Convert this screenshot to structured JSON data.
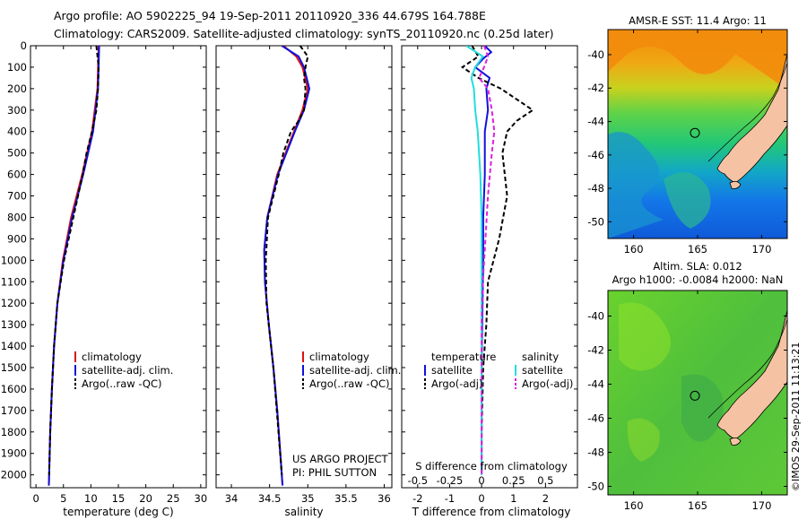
{
  "title_line1": "Argo profile: AO 5902225_94 19-Sep-2011 20110920_336 44.679S 164.788E",
  "title_line2": "Climatology: CARS2009. Satellite-adjusted climatology: synTS_20110920.nc (0.25d later)",
  "credit": "©IMOS 29-Sep-2011 11:13:21",
  "colors": {
    "climatology": "#dd1111",
    "satellite": "#1111dd",
    "argo": "#000000",
    "t_satellite": "#1111dd",
    "s_satellite": "#22dddd",
    "s_argo": "#dd22dd",
    "land": "#f5c3a3"
  },
  "chart_data": [
    {
      "type": "line",
      "name": "temperature-panel",
      "xlabel": "temperature (deg C)",
      "ylabel": "",
      "xlim": [
        -1,
        31
      ],
      "ylim": [
        2060,
        0
      ],
      "xticks": [
        0,
        5,
        10,
        15,
        20,
        25,
        30
      ],
      "yticks": [
        0,
        100,
        200,
        300,
        400,
        500,
        600,
        700,
        800,
        900,
        1000,
        1100,
        1200,
        1300,
        1400,
        1500,
        1600,
        1700,
        1800,
        1900,
        2000
      ],
      "legend": [
        "climatology",
        "satellite-adj. clim.",
        "Argo(..raw -QC)"
      ],
      "legend_position": "lower-center",
      "series": [
        {
          "name": "climatology",
          "color_key": "climatology",
          "depth": [
            0,
            200,
            400,
            600,
            800,
            1000,
            1200,
            1400,
            1600,
            1800,
            2000,
            2050
          ],
          "values": [
            11.4,
            11.2,
            10.2,
            8.4,
            6.4,
            4.9,
            3.9,
            3.3,
            2.9,
            2.6,
            2.4,
            2.35
          ]
        },
        {
          "name": "satellite-adj. clim.",
          "color_key": "satellite",
          "depth": [
            0,
            200,
            400,
            600,
            800,
            1000,
            1200,
            1400,
            1600,
            1800,
            2000,
            2050
          ],
          "values": [
            11.5,
            11.3,
            10.4,
            8.6,
            6.6,
            5.0,
            3.9,
            3.3,
            2.9,
            2.6,
            2.4,
            2.35
          ]
        },
        {
          "name": "Argo(..raw -QC)",
          "color_key": "argo",
          "dashed": true,
          "depth": [
            0,
            100,
            200,
            300,
            400,
            500,
            600,
            800,
            1000,
            1200,
            1400,
            1600,
            1800,
            2000
          ],
          "values": [
            11.0,
            11.4,
            11.3,
            11.0,
            10.2,
            9.2,
            8.5,
            6.8,
            5.1,
            3.9,
            3.3,
            2.9,
            2.6,
            2.4
          ]
        }
      ]
    },
    {
      "type": "line",
      "name": "salinity-panel",
      "xlabel": "salinity",
      "ylabel": "",
      "xlim": [
        33.8,
        36.1
      ],
      "ylim": [
        2060,
        0
      ],
      "xticks": [
        34,
        34.5,
        35,
        35.5,
        36
      ],
      "tick_labels": [
        "34",
        "34.5",
        "35",
        "35.5",
        "36"
      ],
      "legend": [
        "climatology",
        "satellite-adj. clim.",
        "Argo(..raw -QC)"
      ],
      "legend_position": "lower-right",
      "annotation": [
        "US ARGO PROJECT",
        "PI: PHIL SUTTON"
      ],
      "series": [
        {
          "name": "climatology",
          "color_key": "climatology",
          "depth": [
            0,
            50,
            100,
            200,
            300,
            400,
            600,
            800,
            950,
            1100,
            1300,
            1500,
            1700,
            1900,
            2050
          ],
          "values": [
            34.68,
            34.85,
            34.93,
            35.0,
            34.93,
            34.82,
            34.6,
            34.47,
            34.43,
            34.44,
            34.49,
            34.55,
            34.6,
            34.64,
            34.67
          ]
        },
        {
          "name": "satellite-adj. clim.",
          "color_key": "satellite",
          "depth": [
            0,
            50,
            100,
            200,
            300,
            400,
            600,
            800,
            950,
            1100,
            1300,
            1500,
            1700,
            1900,
            2050
          ],
          "values": [
            34.66,
            34.88,
            34.95,
            35.02,
            34.95,
            34.83,
            34.61,
            34.47,
            34.43,
            34.44,
            34.49,
            34.55,
            34.6,
            34.64,
            34.67
          ]
        },
        {
          "name": "Argo(..raw -QC)",
          "color_key": "argo",
          "dashed": true,
          "depth": [
            0,
            50,
            100,
            150,
            200,
            300,
            350,
            400,
            500,
            600,
            800,
            1000,
            1200,
            1500,
            2000
          ],
          "values": [
            34.9,
            35.0,
            34.97,
            34.95,
            34.97,
            34.95,
            34.88,
            34.78,
            34.68,
            34.62,
            34.48,
            34.45,
            34.46,
            34.55,
            34.66
          ]
        }
      ]
    },
    {
      "type": "line",
      "name": "difference-panel",
      "xlabel": "T difference from climatology",
      "x2label": "S difference from climatology",
      "ylabel": "",
      "xlim": [
        -2.5,
        3.0
      ],
      "ylim": [
        2060,
        0
      ],
      "xticks": [
        -2,
        -1,
        0,
        1,
        2
      ],
      "s_ticks": [
        -0.5,
        -0.25,
        0,
        0.25,
        0.5
      ],
      "s_tick_labels": [
        "-0.5",
        "-0.25",
        "0",
        "0.25",
        "0.5"
      ],
      "legend_groups": [
        {
          "heading": "temperature",
          "items": [
            "satellite",
            "Argo(-adj)"
          ]
        },
        {
          "heading": "salinity",
          "items": [
            "satellite",
            "Argo(-adj)"
          ]
        }
      ],
      "legend_position": "lower-center",
      "series": [
        {
          "name": "temperature satellite",
          "color_key": "t_satellite",
          "depth": [
            0,
            30,
            60,
            100,
            150,
            200,
            300,
            400,
            600,
            800,
            1000,
            1500,
            2000
          ],
          "values": [
            0.1,
            0.3,
            0.05,
            -0.2,
            0.25,
            0.15,
            0.2,
            0.1,
            0.1,
            0.05,
            0.05,
            0.0,
            0.0
          ]
        },
        {
          "name": "temperature Argo(-adj)",
          "color_key": "argo",
          "dashed": true,
          "depth": [
            0,
            50,
            100,
            150,
            200,
            250,
            300,
            350,
            400,
            500,
            700,
            900,
            1100,
            1300,
            1500,
            1800,
            2000
          ],
          "values": [
            -0.3,
            -0.1,
            -0.6,
            -0.1,
            0.6,
            1.1,
            1.6,
            1.1,
            0.8,
            0.65,
            0.8,
            0.55,
            0.2,
            0.15,
            0.05,
            0.0,
            0.0
          ]
        },
        {
          "name": "salinity satellite",
          "color_key": "s_satellite",
          "depth": [
            0,
            50,
            100,
            150,
            200,
            300,
            400,
            600,
            800,
            1000,
            1500,
            2000
          ],
          "values": [
            -0.12,
            0.01,
            -0.05,
            -0.08,
            -0.06,
            -0.05,
            -0.03,
            -0.01,
            0.0,
            0.0,
            0.0,
            0.0
          ]
        },
        {
          "name": "salinity Argo(-adj)",
          "color_key": "s_argo",
          "dashed": true,
          "depth": [
            0,
            50,
            100,
            150,
            200,
            300,
            400,
            500,
            700,
            900,
            1100,
            1300,
            1500,
            2000
          ],
          "values": [
            0.02,
            0.05,
            0.02,
            -0.02,
            0.05,
            0.08,
            0.1,
            0.08,
            0.05,
            0.03,
            0.01,
            0.0,
            0.0,
            0.0
          ]
        }
      ]
    },
    {
      "type": "heatmap",
      "name": "sst-map",
      "title": "AMSR-E SST: 11.4  Argo: 11",
      "xlim": [
        158,
        172
      ],
      "ylim": [
        -51,
        -38.5
      ],
      "xticks": [
        160,
        165,
        170
      ],
      "yticks": [
        -40,
        -42,
        -44,
        -46,
        -48,
        -50
      ],
      "argo_position": {
        "lon": 164.788,
        "lat": -44.679
      },
      "colormap": "jet"
    },
    {
      "type": "heatmap",
      "name": "sla-map",
      "title": "Altim. SLA: 0.012",
      "subtitle": "Argo h1000: -0.0084  h2000: NaN",
      "xlim": [
        158,
        172
      ],
      "ylim": [
        -50.5,
        -38.5
      ],
      "xticks": [
        160,
        165,
        170
      ],
      "yticks": [
        -40,
        -42,
        -44,
        -46,
        -48,
        -50
      ],
      "argo_position": {
        "lon": 164.788,
        "lat": -44.679
      },
      "colormap": "green"
    }
  ]
}
